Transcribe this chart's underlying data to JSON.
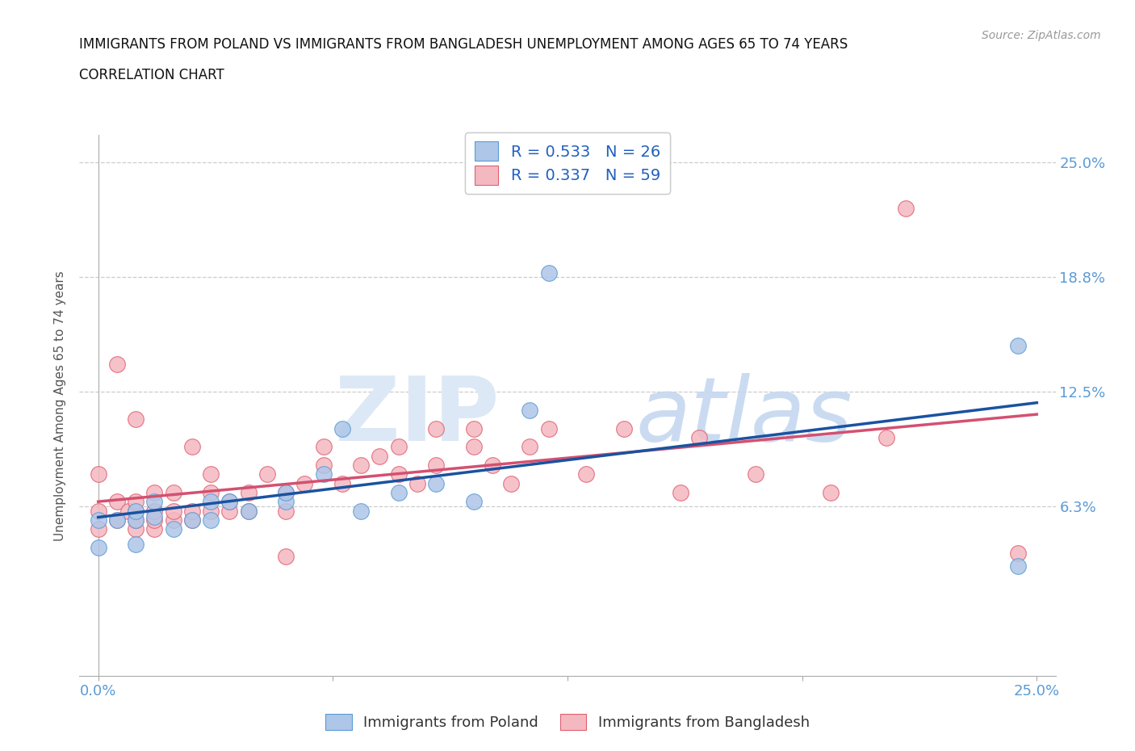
{
  "title_line1": "IMMIGRANTS FROM POLAND VS IMMIGRANTS FROM BANGLADESH UNEMPLOYMENT AMONG AGES 65 TO 74 YEARS",
  "title_line2": "CORRELATION CHART",
  "source": "Source: ZipAtlas.com",
  "ylabel": "Unemployment Among Ages 65 to 74 years",
  "xlim": [
    -0.005,
    0.255
  ],
  "ylim": [
    -0.03,
    0.265
  ],
  "plot_xlim": [
    0.0,
    0.25
  ],
  "plot_ylim": [
    0.0,
    0.25
  ],
  "xticks": [
    0.0,
    0.0625,
    0.125,
    0.1875,
    0.25
  ],
  "xticklabels": [
    "0.0%",
    "",
    "",
    "",
    "25.0%"
  ],
  "ytick_positions": [
    0.0625,
    0.125,
    0.1875,
    0.25
  ],
  "right_yticklabels": [
    "6.3%",
    "12.5%",
    "18.8%",
    "25.0%"
  ],
  "grid_color": "#cccccc",
  "background_color": "#ffffff",
  "poland_color": "#aec6e8",
  "poland_edge": "#5b9bd5",
  "bangladesh_color": "#f4b8c1",
  "bangladesh_edge": "#e06070",
  "poland_R": 0.533,
  "poland_N": 26,
  "bangladesh_R": 0.337,
  "bangladesh_N": 59,
  "poland_line_color": "#1a52a0",
  "bangladesh_line_color": "#d45070",
  "legend_text_color": "#2060c0",
  "tick_color": "#5b9bd5",
  "poland_scatter_x": [
    0.0,
    0.0,
    0.005,
    0.01,
    0.01,
    0.01,
    0.015,
    0.015,
    0.02,
    0.025,
    0.03,
    0.03,
    0.035,
    0.04,
    0.05,
    0.05,
    0.06,
    0.065,
    0.07,
    0.08,
    0.09,
    0.1,
    0.115,
    0.12,
    0.245,
    0.245
  ],
  "poland_scatter_y": [
    0.04,
    0.055,
    0.055,
    0.042,
    0.055,
    0.06,
    0.057,
    0.065,
    0.05,
    0.055,
    0.055,
    0.065,
    0.065,
    0.06,
    0.065,
    0.07,
    0.08,
    0.105,
    0.06,
    0.07,
    0.075,
    0.065,
    0.115,
    0.19,
    0.15,
    0.03
  ],
  "bangladesh_scatter_x": [
    0.0,
    0.0,
    0.0,
    0.005,
    0.005,
    0.008,
    0.01,
    0.01,
    0.01,
    0.01,
    0.015,
    0.015,
    0.015,
    0.015,
    0.02,
    0.02,
    0.02,
    0.025,
    0.025,
    0.025,
    0.03,
    0.03,
    0.03,
    0.035,
    0.035,
    0.04,
    0.04,
    0.045,
    0.05,
    0.05,
    0.05,
    0.055,
    0.06,
    0.06,
    0.065,
    0.07,
    0.075,
    0.08,
    0.08,
    0.085,
    0.09,
    0.09,
    0.1,
    0.1,
    0.105,
    0.11,
    0.115,
    0.12,
    0.13,
    0.14,
    0.155,
    0.16,
    0.175,
    0.195,
    0.21,
    0.215,
    0.245,
    0.005,
    0.01
  ],
  "bangladesh_scatter_y": [
    0.05,
    0.06,
    0.08,
    0.055,
    0.065,
    0.06,
    0.05,
    0.055,
    0.06,
    0.065,
    0.05,
    0.055,
    0.06,
    0.07,
    0.055,
    0.06,
    0.07,
    0.055,
    0.06,
    0.095,
    0.06,
    0.07,
    0.08,
    0.06,
    0.065,
    0.06,
    0.07,
    0.08,
    0.035,
    0.06,
    0.07,
    0.075,
    0.085,
    0.095,
    0.075,
    0.085,
    0.09,
    0.08,
    0.095,
    0.075,
    0.085,
    0.105,
    0.095,
    0.105,
    0.085,
    0.075,
    0.095,
    0.105,
    0.08,
    0.105,
    0.07,
    0.1,
    0.08,
    0.07,
    0.1,
    0.225,
    0.037,
    0.14,
    0.11
  ],
  "legend_poland_label": "Immigrants from Poland",
  "legend_bangladesh_label": "Immigrants from Bangladesh"
}
